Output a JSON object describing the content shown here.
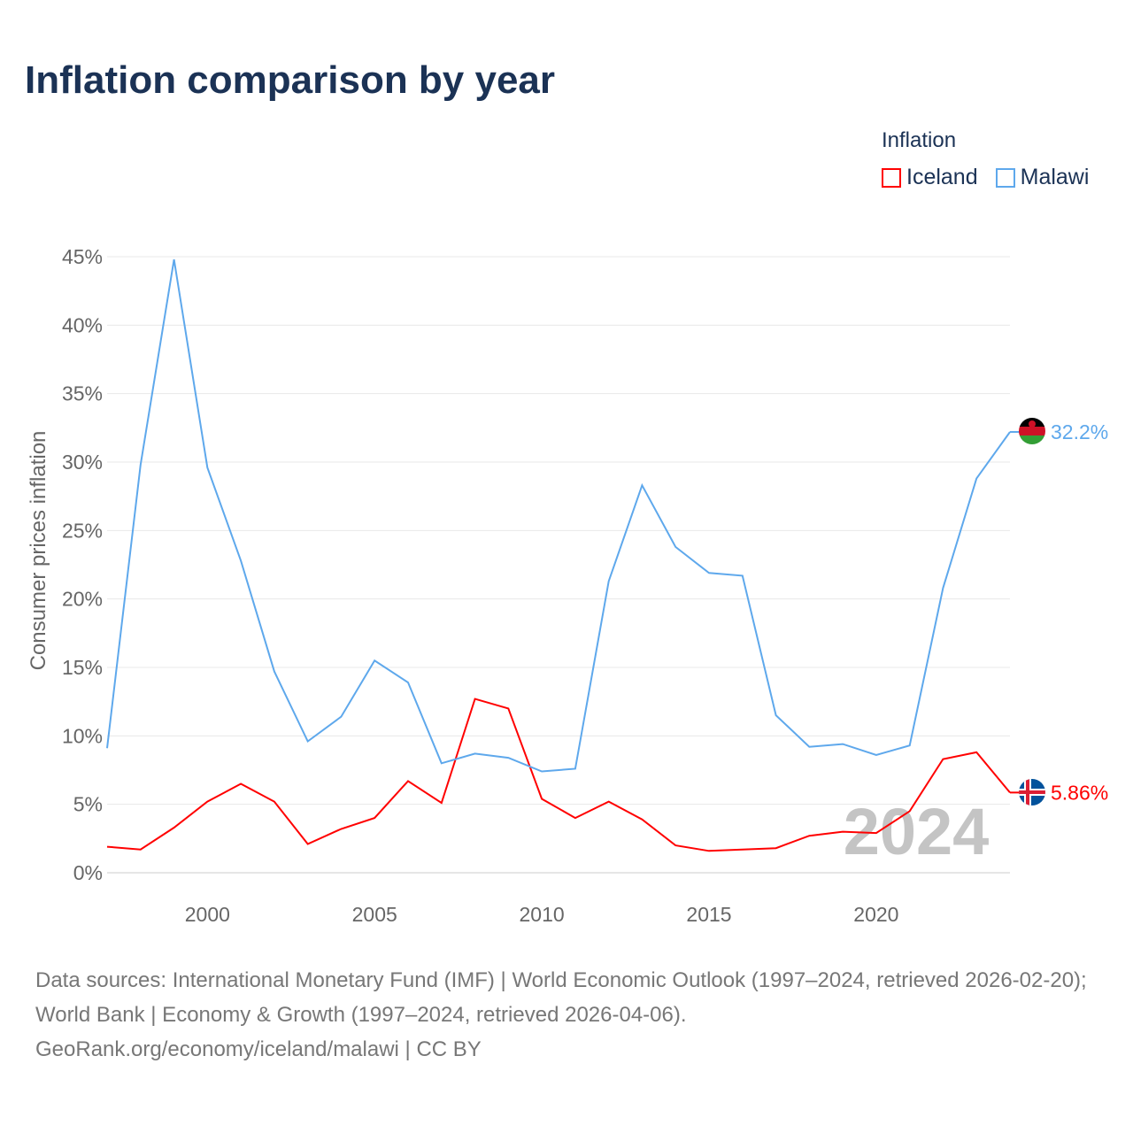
{
  "title": "Inflation comparison by year",
  "legend": {
    "title": "Inflation",
    "items": [
      {
        "name": "Iceland",
        "color": "#ff0000"
      },
      {
        "name": "Malawi",
        "color": "#5ea8ec"
      }
    ]
  },
  "watermark_year": "2024",
  "source": {
    "line1": "Data sources: International Monetary Fund (IMF) | World Economic Outlook (1997–2024, retrieved 2026-02-20); World Bank | Economy & Growth (1997–2024, retrieved 2026-04-06).",
    "line2": "GeoRank.org/economy/iceland/malawi | CC BY"
  },
  "chart_data": {
    "type": "line",
    "title": "Inflation comparison by year",
    "xlabel": "",
    "ylabel": "Consumer prices inflation",
    "xlim": [
      1997,
      2024
    ],
    "ylim": [
      0,
      45
    ],
    "xticks": [
      2000,
      2005,
      2010,
      2015,
      2020
    ],
    "yticks": [
      "0%",
      "5%",
      "10%",
      "15%",
      "20%",
      "25%",
      "30%",
      "35%",
      "40%",
      "45%"
    ],
    "x": [
      1997,
      1998,
      1999,
      2000,
      2001,
      2002,
      2003,
      2004,
      2005,
      2006,
      2007,
      2008,
      2009,
      2010,
      2011,
      2012,
      2013,
      2014,
      2015,
      2016,
      2017,
      2018,
      2019,
      2020,
      2021,
      2022,
      2023,
      2024
    ],
    "series": [
      {
        "name": "Iceland",
        "color": "#ff0000",
        "end_label": "5.86%",
        "values": [
          1.9,
          1.7,
          3.3,
          5.2,
          6.5,
          5.2,
          2.1,
          3.2,
          4.0,
          6.7,
          5.1,
          12.7,
          12.0,
          5.4,
          4.0,
          5.2,
          3.9,
          2.0,
          1.6,
          1.7,
          1.8,
          2.7,
          3.0,
          2.9,
          4.5,
          8.3,
          8.8,
          5.86
        ]
      },
      {
        "name": "Malawi",
        "color": "#5ea8ec",
        "end_label": "32.2%",
        "values": [
          9.1,
          29.8,
          44.8,
          29.6,
          22.8,
          14.7,
          9.6,
          11.4,
          15.5,
          13.9,
          8.0,
          8.7,
          8.4,
          7.4,
          7.6,
          21.3,
          28.3,
          23.8,
          21.9,
          21.7,
          11.5,
          9.2,
          9.4,
          8.6,
          9.3,
          20.8,
          28.8,
          32.2
        ]
      }
    ],
    "grid": true,
    "legend_position": "top-right"
  }
}
